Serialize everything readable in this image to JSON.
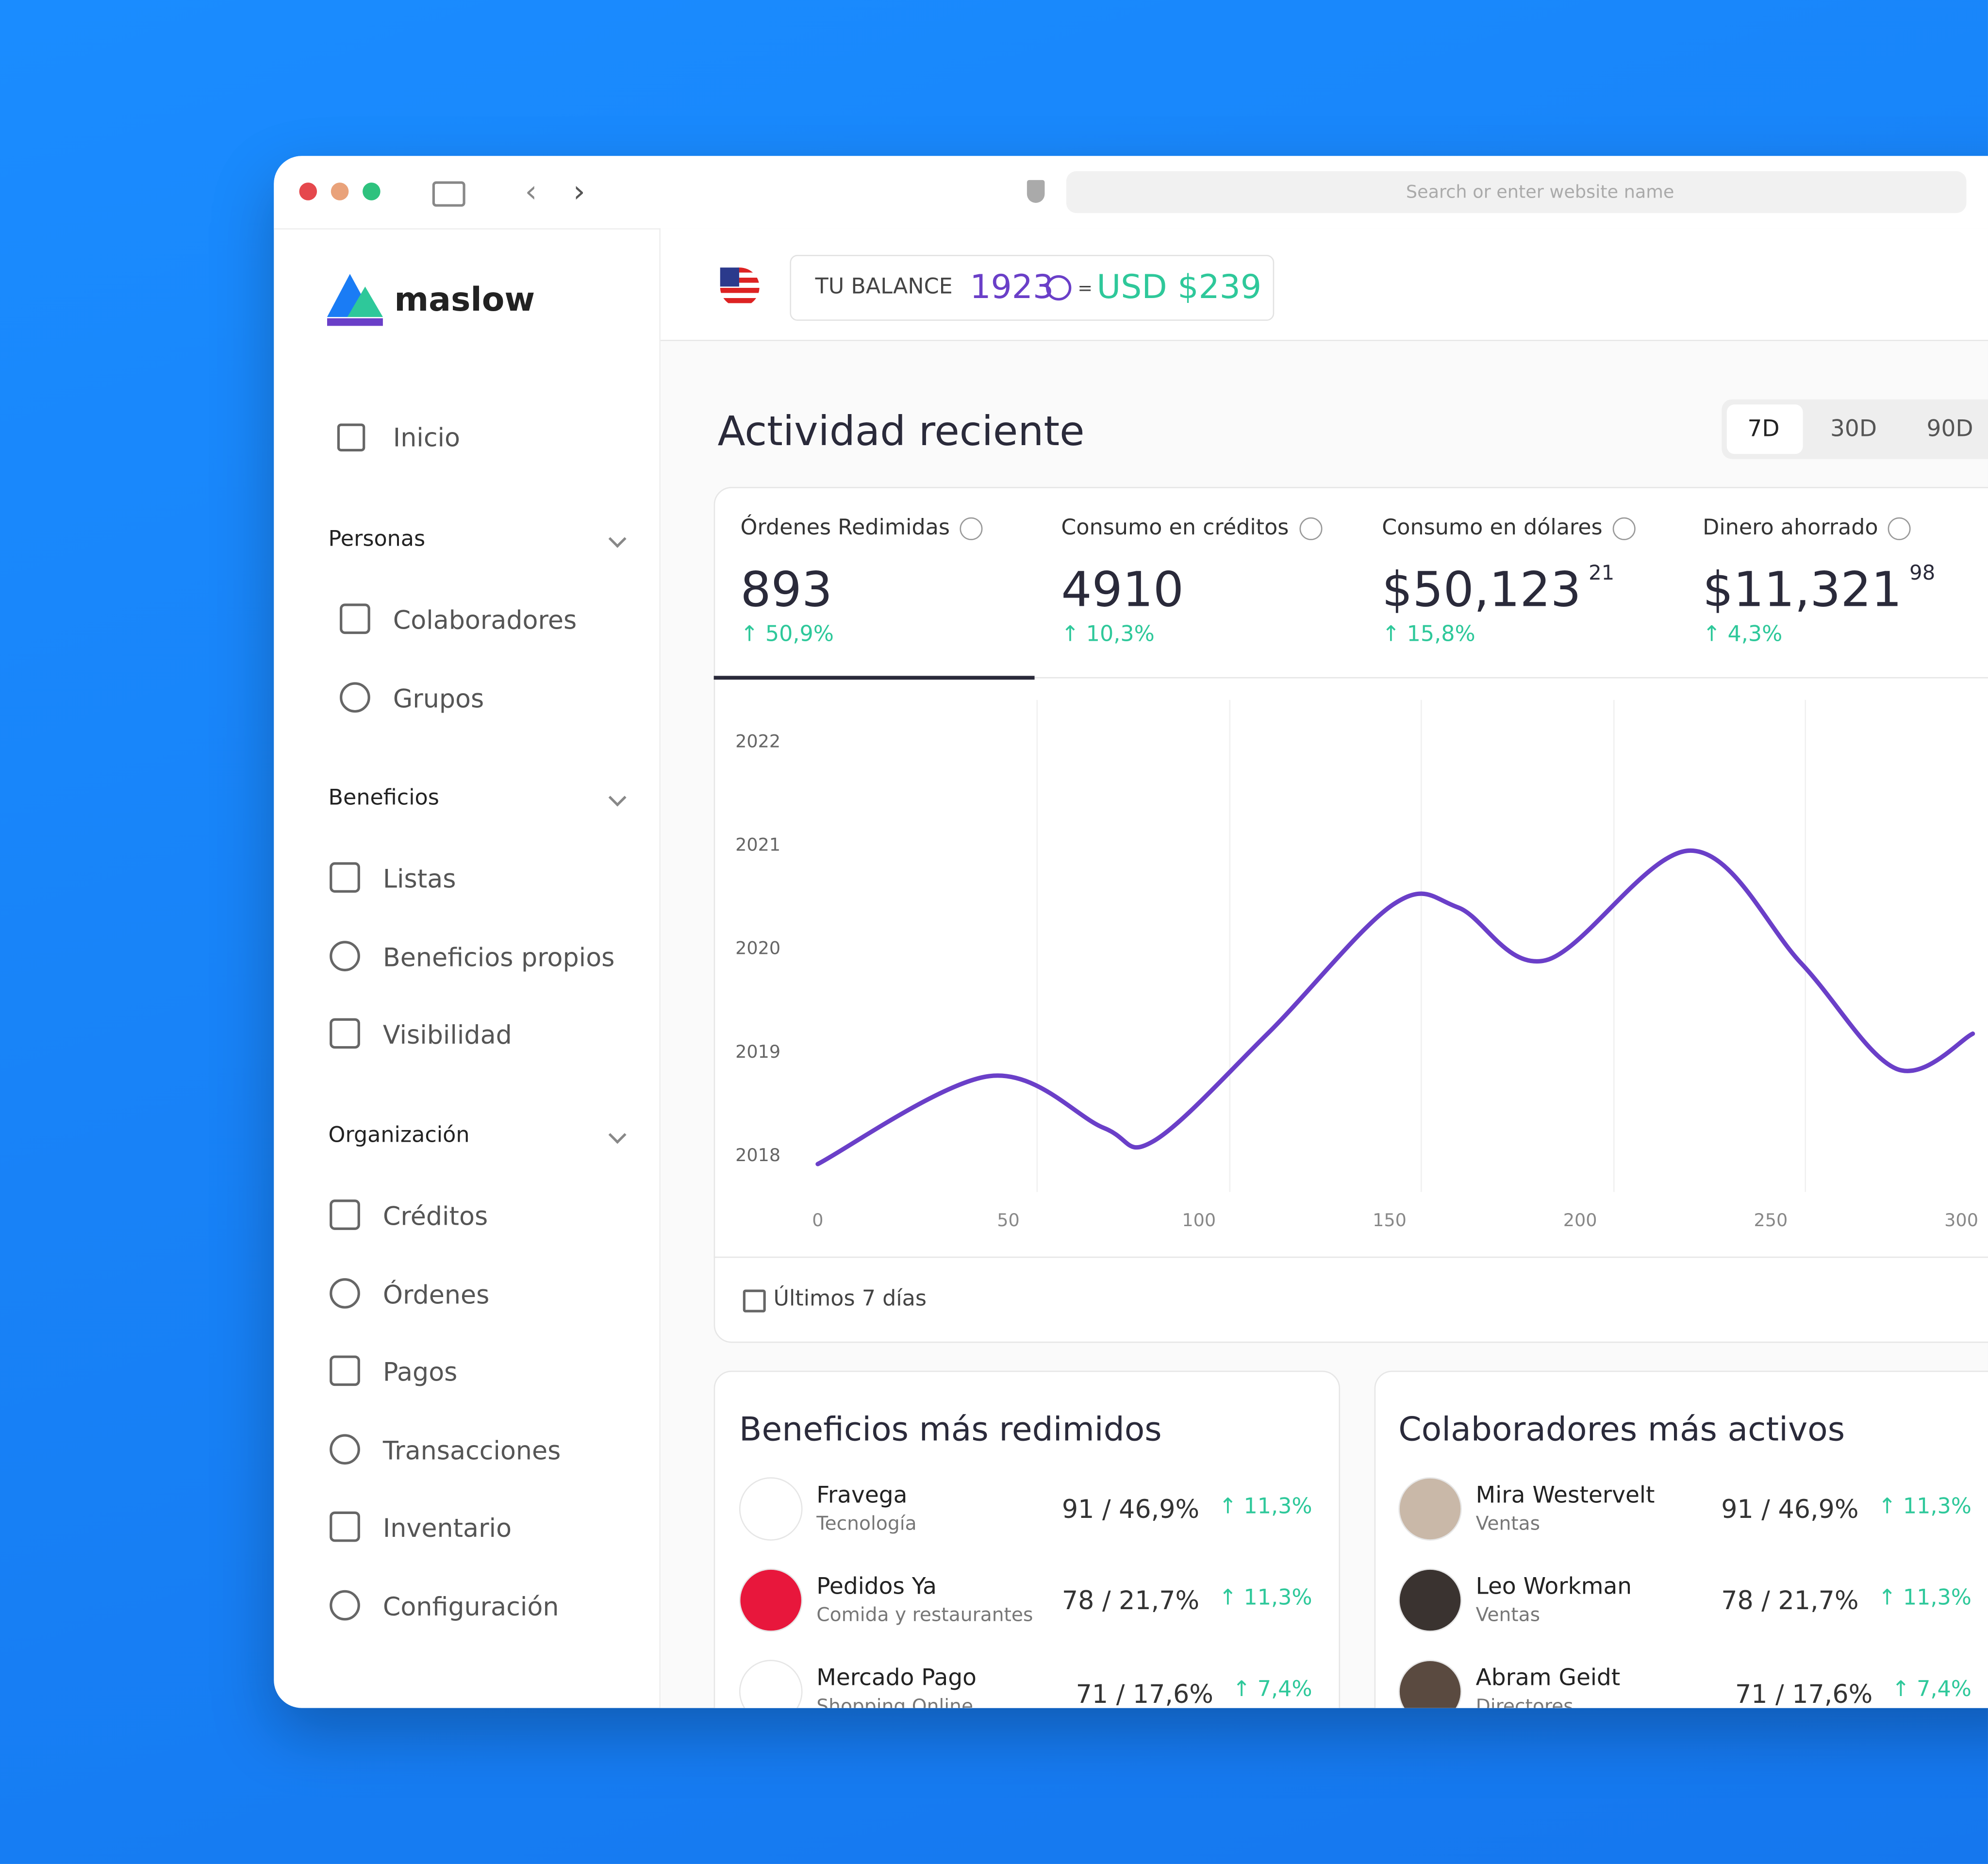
{
  "browser": {
    "search_placeholder": "Search or enter website name"
  },
  "sidebar": {
    "logo": "maslow",
    "home": "Inicio",
    "sections": [
      {
        "title": "Personas",
        "items": [
          "Colaboradores",
          "Grupos"
        ]
      },
      {
        "title": "Beneficios",
        "items": [
          "Listas",
          "Beneficios propios",
          "Visibilidad"
        ]
      },
      {
        "title": "Organización",
        "items": [
          "Créditos",
          "Órdenes",
          "Pagos",
          "Transacciones",
          "Inventario",
          "Configuración"
        ]
      }
    ]
  },
  "header": {
    "balance_label": "TU BALANCE",
    "credits": "1923",
    "equals": "=",
    "usd": "USD $239"
  },
  "activity": {
    "title": "Actividad reciente",
    "ranges": [
      "7D",
      "30D",
      "90D"
    ],
    "stats": [
      {
        "label": "Órdenes Redimidas",
        "value": "893",
        "change": "↑ 50,9%"
      },
      {
        "label": "Consumo en créditos",
        "value": "4910",
        "change": "↑ 10,3%"
      },
      {
        "label": "Consumo en dólares",
        "value": "$50,123",
        "cents": "21",
        "change": "↑ 15,8%"
      },
      {
        "label": "Dinero ahorrado",
        "value": "$11,321",
        "cents": "98",
        "change": "↑ 4,3%"
      }
    ],
    "footer": "Últimos 7 días"
  },
  "chart": {
    "type": "line",
    "color": "#6a3fc8",
    "x": [
      0,
      45,
      75,
      88,
      118,
      151,
      168,
      191,
      229,
      258,
      283,
      303
    ],
    "values": [
      2017.91,
      2018.76,
      2018.26,
      2018.13,
      2019.17,
      2020.42,
      2020.39,
      2019.88,
      2020.94,
      2019.85,
      2018.83,
      2019.17
    ],
    "xlim": [
      0,
      300
    ],
    "ylim": [
      2017.8,
      2022.2
    ],
    "xticks": [
      0,
      50,
      100,
      150,
      200,
      250,
      300
    ],
    "yticks": [
      2018,
      2019,
      2020,
      2021,
      2022
    ]
  },
  "benefits": {
    "title": "Beneficios más redimidos",
    "rows": [
      {
        "name": "Fravega",
        "category": "Tecnología",
        "stat": "91 / 46,9%",
        "change": "↑ 11,3%"
      },
      {
        "name": "Pedidos Ya",
        "category": "Comida y restaurantes",
        "stat": "78 / 21,7%",
        "change": "↑ 11,3%"
      },
      {
        "name": "Mercado Pago",
        "category": "Shopping Online",
        "stat": "71 / 17,6%",
        "change": "↑ 7,4%"
      }
    ]
  },
  "collaborators": {
    "title": "Colaboradores más activos",
    "rows": [
      {
        "name": "Mira Westervelt",
        "category": "Ventas",
        "stat": "91 / 46,9%",
        "change": "↑ 11,3%"
      },
      {
        "name": "Leo Workman",
        "category": "Ventas",
        "stat": "78 / 21,7%",
        "change": "↑ 11,3%"
      },
      {
        "name": "Abram Geidt",
        "category": "Directores",
        "stat": "71 / 17,6%",
        "change": "↑ 7,4%"
      }
    ]
  }
}
